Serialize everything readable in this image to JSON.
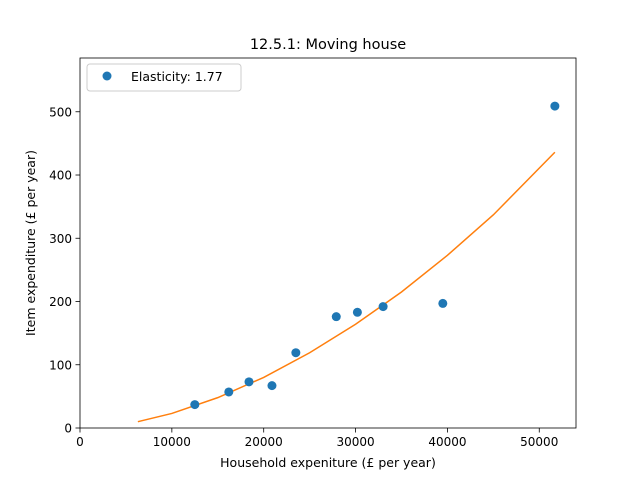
{
  "chart_data": {
    "type": "scatter",
    "title": "12.5.1: Moving house",
    "xlabel": "Household expeniture (£ per year)",
    "ylabel": "Item expenditure (£ per year)",
    "xlim": [
      0,
      54000
    ],
    "ylim": [
      0,
      585
    ],
    "x_ticks": [
      0,
      10000,
      20000,
      30000,
      40000,
      50000
    ],
    "y_ticks": [
      0,
      100,
      200,
      300,
      400,
      500
    ],
    "grid": false,
    "legend": {
      "placement": "top-left",
      "entries": [
        "Elasticity: 1.77"
      ]
    },
    "series": [
      {
        "name": "Elasticity: 1.77",
        "kind": "points",
        "color": "#1f77b4",
        "points": [
          {
            "x": 12500,
            "y": 37
          },
          {
            "x": 16200,
            "y": 57
          },
          {
            "x": 18400,
            "y": 73
          },
          {
            "x": 20900,
            "y": 67
          },
          {
            "x": 23500,
            "y": 119
          },
          {
            "x": 27900,
            "y": 176
          },
          {
            "x": 30200,
            "y": 183
          },
          {
            "x": 33000,
            "y": 192
          },
          {
            "x": 39500,
            "y": 197
          },
          {
            "x": 51700,
            "y": 509
          }
        ]
      },
      {
        "kind": "fit-line",
        "color": "#ff7f0e",
        "points": [
          {
            "x": 6300,
            "y": 10
          },
          {
            "x": 10000,
            "y": 23
          },
          {
            "x": 15000,
            "y": 48
          },
          {
            "x": 20000,
            "y": 80
          },
          {
            "x": 25000,
            "y": 119
          },
          {
            "x": 30000,
            "y": 164
          },
          {
            "x": 35000,
            "y": 215
          },
          {
            "x": 40000,
            "y": 273
          },
          {
            "x": 45000,
            "y": 337
          },
          {
            "x": 51700,
            "y": 436
          }
        ]
      }
    ]
  }
}
